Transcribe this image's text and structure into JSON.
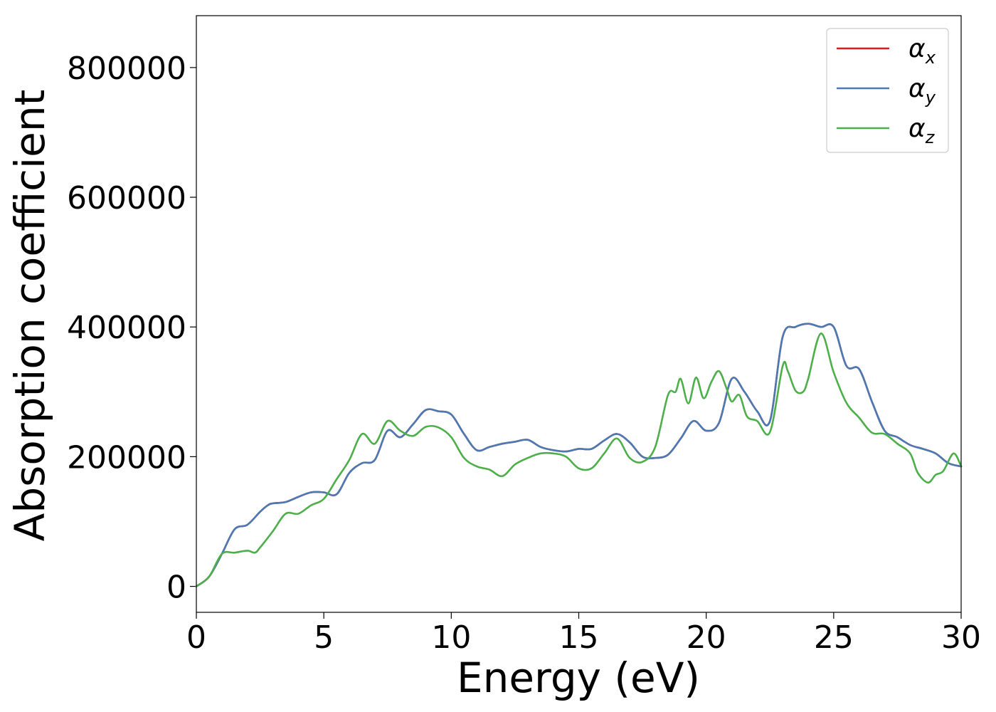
{
  "chart_data": {
    "type": "line",
    "title": "",
    "xlabel": "Energy (eV)",
    "ylabel": "Absorption coefficient",
    "xlim": [
      0,
      30
    ],
    "ylim": [
      -40000,
      880000
    ],
    "xticks": [
      0,
      5,
      10,
      15,
      20,
      25,
      30
    ],
    "xtick_labels": [
      "0",
      "5",
      "10",
      "15",
      "20",
      "25",
      "30"
    ],
    "yticks": [
      0,
      200000,
      400000,
      600000,
      800000
    ],
    "ytick_labels": [
      "0",
      "200000",
      "400000",
      "600000",
      "800000"
    ],
    "grid": false,
    "legend": "top-right",
    "series": [
      {
        "name": "α",
        "subscript": "x",
        "color": "#e41a1c",
        "x": [
          0,
          0.5,
          1.0,
          1.5,
          2.0,
          2.5,
          2.8,
          3.0,
          3.5,
          4.0,
          4.5,
          5.0,
          5.5,
          6.0,
          6.5,
          7.0,
          7.5,
          8.0,
          8.5,
          9.0,
          9.5,
          10.0,
          10.5,
          11.0,
          11.5,
          12.0,
          12.5,
          13.0,
          13.5,
          14.0,
          14.5,
          15.0,
          15.5,
          16.0,
          16.5,
          17.0,
          17.5,
          18.0,
          18.5,
          19.0,
          19.5,
          20.0,
          20.5,
          21.0,
          21.5,
          22.0,
          22.5,
          23.0,
          23.5,
          24.0,
          24.5,
          25.0,
          25.5,
          26.0,
          26.5,
          27.0,
          27.5,
          28.0,
          28.5,
          29.0,
          29.5,
          30.0
        ],
        "y": [
          0,
          15000,
          50000,
          88000,
          95000,
          115000,
          125000,
          128000,
          130000,
          138000,
          145000,
          145000,
          142000,
          175000,
          190000,
          195000,
          240000,
          230000,
          250000,
          272000,
          270000,
          265000,
          235000,
          210000,
          215000,
          220000,
          223000,
          226000,
          215000,
          210000,
          208000,
          212000,
          212000,
          225000,
          235000,
          222000,
          200000,
          198000,
          203000,
          228000,
          255000,
          240000,
          252000,
          320000,
          300000,
          270000,
          255000,
          385000,
          400000,
          405000,
          400000,
          400000,
          340000,
          335000,
          285000,
          240000,
          230000,
          218000,
          212000,
          205000,
          190000,
          185000
        ]
      },
      {
        "name": "α",
        "subscript": "y",
        "color": "#4a7ab3",
        "x": [
          0,
          0.5,
          1.0,
          1.5,
          2.0,
          2.5,
          2.8,
          3.0,
          3.5,
          4.0,
          4.5,
          5.0,
          5.5,
          6.0,
          6.5,
          7.0,
          7.5,
          8.0,
          8.5,
          9.0,
          9.5,
          10.0,
          10.5,
          11.0,
          11.5,
          12.0,
          12.5,
          13.0,
          13.5,
          14.0,
          14.5,
          15.0,
          15.5,
          16.0,
          16.5,
          17.0,
          17.5,
          18.0,
          18.5,
          19.0,
          19.5,
          20.0,
          20.5,
          21.0,
          21.5,
          22.0,
          22.5,
          23.0,
          23.5,
          24.0,
          24.5,
          25.0,
          25.5,
          26.0,
          26.5,
          27.0,
          27.5,
          28.0,
          28.5,
          29.0,
          29.5,
          30.0
        ],
        "y": [
          0,
          15000,
          50000,
          88000,
          95000,
          115000,
          125000,
          128000,
          130000,
          138000,
          145000,
          145000,
          142000,
          175000,
          190000,
          195000,
          240000,
          230000,
          250000,
          272000,
          270000,
          265000,
          235000,
          210000,
          215000,
          220000,
          223000,
          226000,
          215000,
          210000,
          208000,
          212000,
          212000,
          225000,
          235000,
          222000,
          200000,
          198000,
          203000,
          228000,
          255000,
          240000,
          252000,
          320000,
          300000,
          270000,
          255000,
          385000,
          400000,
          405000,
          400000,
          400000,
          340000,
          335000,
          285000,
          240000,
          230000,
          218000,
          212000,
          205000,
          190000,
          185000
        ]
      },
      {
        "name": "α",
        "subscript": "z",
        "color": "#4daf4a",
        "x": [
          0,
          0.5,
          1.0,
          1.5,
          2.0,
          2.3,
          2.5,
          3.0,
          3.5,
          4.0,
          4.5,
          5.0,
          5.5,
          6.0,
          6.5,
          7.0,
          7.5,
          8.0,
          8.5,
          9.0,
          9.5,
          10.0,
          10.5,
          11.0,
          11.5,
          12.0,
          12.5,
          13.0,
          13.5,
          14.0,
          14.5,
          15.0,
          15.5,
          16.0,
          16.5,
          17.0,
          17.5,
          18.0,
          18.5,
          18.8,
          19.0,
          19.3,
          19.6,
          19.9,
          20.2,
          20.5,
          20.8,
          21.0,
          21.3,
          21.6,
          22.0,
          22.5,
          23.0,
          23.2,
          23.5,
          23.8,
          24.0,
          24.5,
          25.0,
          25.5,
          26.0,
          26.5,
          27.0,
          27.5,
          28.0,
          28.3,
          28.7,
          29.0,
          29.3,
          29.7,
          30.0
        ],
        "y": [
          0,
          15000,
          50000,
          52000,
          55000,
          52000,
          60000,
          85000,
          112000,
          112000,
          125000,
          135000,
          165000,
          195000,
          235000,
          220000,
          255000,
          240000,
          232000,
          246000,
          245000,
          230000,
          198000,
          185000,
          180000,
          170000,
          188000,
          198000,
          205000,
          205000,
          200000,
          182000,
          182000,
          205000,
          228000,
          198000,
          192000,
          215000,
          295000,
          300000,
          320000,
          282000,
          322000,
          290000,
          315000,
          332000,
          305000,
          285000,
          295000,
          262000,
          255000,
          238000,
          340000,
          332000,
          302000,
          300000,
          320000,
          390000,
          330000,
          283000,
          260000,
          237000,
          235000,
          220000,
          205000,
          175000,
          160000,
          172000,
          178000,
          205000,
          185000
        ]
      }
    ]
  }
}
